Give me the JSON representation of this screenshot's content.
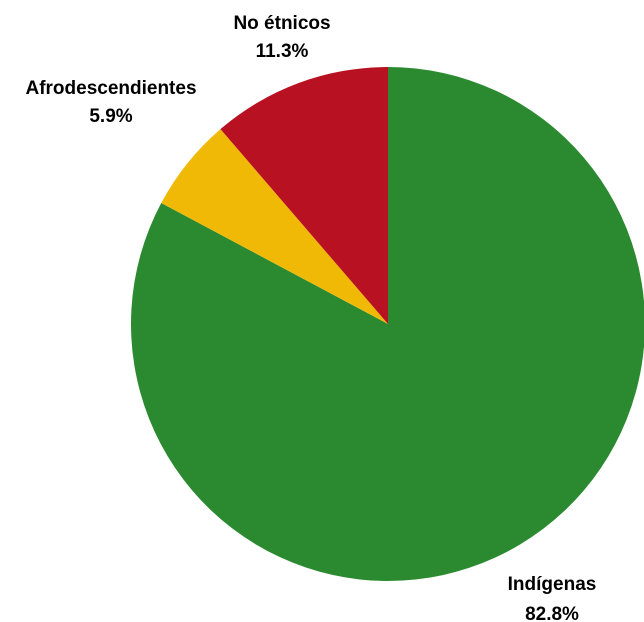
{
  "chart_data": {
    "type": "pie",
    "title": "",
    "start_angle_deg": 0,
    "direction": "clockwise",
    "slices": [
      {
        "label": "Indígenas",
        "value": 82.8,
        "value_label": "82.8%",
        "color": "#2b8a2f"
      },
      {
        "label": "Afrodescendientes",
        "value": 5.9,
        "value_label": "5.9%",
        "color": "#f0b905"
      },
      {
        "label": "No étnicos",
        "value": 11.3,
        "value_label": "11.3%",
        "color": "#b81222"
      }
    ]
  }
}
